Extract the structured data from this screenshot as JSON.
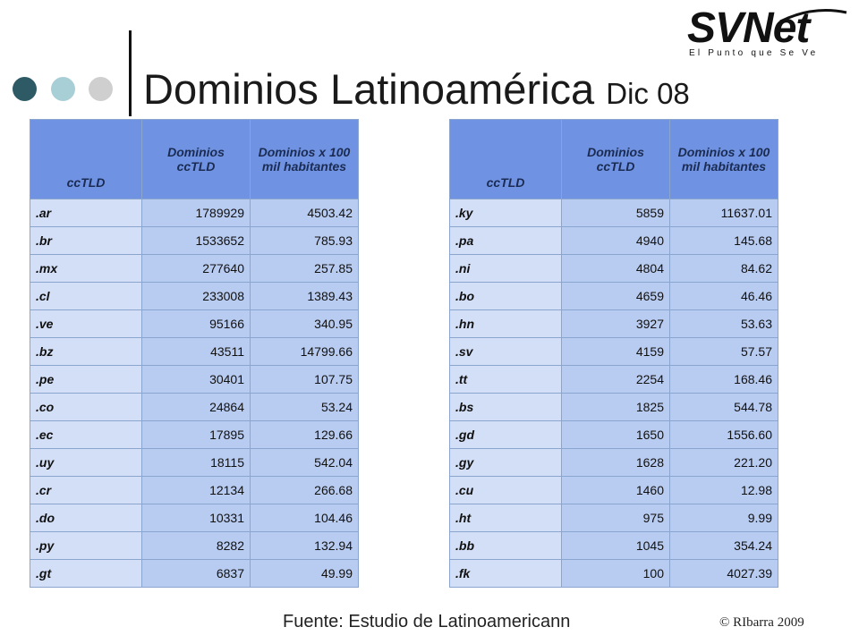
{
  "title": {
    "main": "Dominios Latinoamérica",
    "sub": "Dic 08"
  },
  "logo": {
    "word_sv": "SV",
    "word_net": "Net",
    "tagline": "El Punto que Se Ve"
  },
  "headers": [
    "ccTLD",
    "Dominios ccTLD",
    "Dominios x 100 mil habitantes"
  ],
  "left_table": [
    {
      "cctld": ".ar",
      "domains": "1789929",
      "per100k": "4503.42"
    },
    {
      "cctld": ".br",
      "domains": "1533652",
      "per100k": "785.93"
    },
    {
      "cctld": ".mx",
      "domains": "277640",
      "per100k": "257.85"
    },
    {
      "cctld": ".cl",
      "domains": "233008",
      "per100k": "1389.43"
    },
    {
      "cctld": ".ve",
      "domains": "95166",
      "per100k": "340.95"
    },
    {
      "cctld": ".bz",
      "domains": "43511",
      "per100k": "14799.66"
    },
    {
      "cctld": ".pe",
      "domains": "30401",
      "per100k": "107.75"
    },
    {
      "cctld": ".co",
      "domains": "24864",
      "per100k": "53.24"
    },
    {
      "cctld": ".ec",
      "domains": "17895",
      "per100k": "129.66"
    },
    {
      "cctld": ".uy",
      "domains": "18115",
      "per100k": "542.04"
    },
    {
      "cctld": ".cr",
      "domains": "12134",
      "per100k": "266.68"
    },
    {
      "cctld": ".do",
      "domains": "10331",
      "per100k": "104.46"
    },
    {
      "cctld": ".py",
      "domains": "8282",
      "per100k": "132.94"
    },
    {
      "cctld": ".gt",
      "domains": "6837",
      "per100k": "49.99"
    }
  ],
  "right_table": [
    {
      "cctld": ".ky",
      "domains": "5859",
      "per100k": "11637.01"
    },
    {
      "cctld": ".pa",
      "domains": "4940",
      "per100k": "145.68"
    },
    {
      "cctld": ".ni",
      "domains": "4804",
      "per100k": "84.62"
    },
    {
      "cctld": ".bo",
      "domains": "4659",
      "per100k": "46.46"
    },
    {
      "cctld": ".hn",
      "domains": "3927",
      "per100k": "53.63"
    },
    {
      "cctld": ".sv",
      "domains": "4159",
      "per100k": "57.57"
    },
    {
      "cctld": ".tt",
      "domains": "2254",
      "per100k": "168.46"
    },
    {
      "cctld": ".bs",
      "domains": "1825",
      "per100k": "544.78"
    },
    {
      "cctld": ".gd",
      "domains": "1650",
      "per100k": "1556.60"
    },
    {
      "cctld": ".gy",
      "domains": "1628",
      "per100k": "221.20"
    },
    {
      "cctld": ".cu",
      "domains": "1460",
      "per100k": "12.98"
    },
    {
      "cctld": ".ht",
      "domains": "975",
      "per100k": "9.99"
    },
    {
      "cctld": ".bb",
      "domains": "1045",
      "per100k": "354.24"
    },
    {
      "cctld": ".fk",
      "domains": "100",
      "per100k": "4027.39"
    }
  ],
  "footer": {
    "source": "Fuente: Estudio de Latinoamericann",
    "copyright": "© RIbarra 2009"
  },
  "colors": {
    "header_bg": "#6f93e2",
    "cell_bg": "#b8cbf0",
    "code_bg": "#d3dff7",
    "dot_dark": "#2e5a66",
    "dot_light": "#a9cfd6",
    "dot_grey": "#cfcfcf"
  }
}
